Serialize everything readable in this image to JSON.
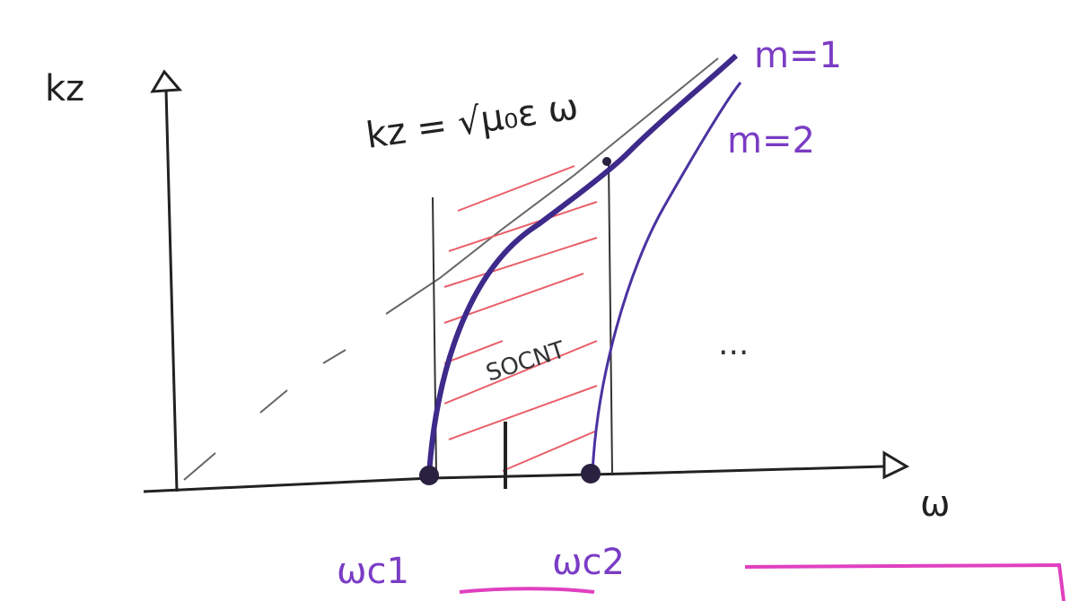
{
  "axes": {
    "y_label": "kz",
    "x_label": "ω"
  },
  "equation": "kz = √μ₀ε ω",
  "modes": [
    {
      "label": "m=1"
    },
    {
      "label": "m=2"
    }
  ],
  "cutoffs": [
    {
      "label": "ωc1"
    },
    {
      "label": "ωc2"
    }
  ],
  "region_label": "SOCNT",
  "ellipsis": "..."
}
